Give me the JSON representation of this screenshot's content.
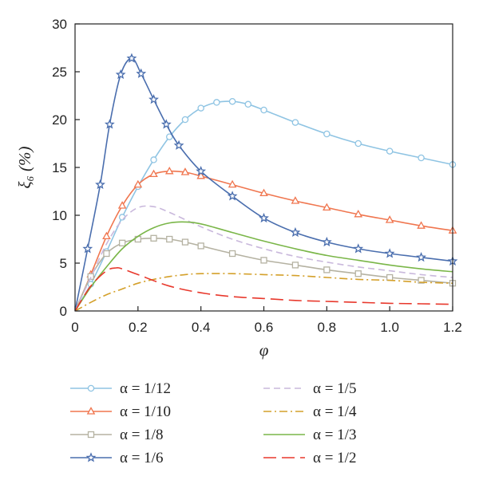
{
  "chart_data": {
    "type": "line",
    "xlabel": "φ",
    "ylabel": "ξ₆ (%)",
    "xlim": [
      0,
      1.2
    ],
    "ylim": [
      0,
      30
    ],
    "xticks": [
      "0",
      "0.2",
      "0.4",
      "0.6",
      "0.8",
      "1.0",
      "1.2"
    ],
    "yticks": [
      "0",
      "5",
      "10",
      "15",
      "20",
      "25",
      "30"
    ],
    "grid": false,
    "legend_position": "bottom",
    "series": [
      {
        "name": "α = 1/12",
        "color": "#8fc4e3",
        "dash": "solid",
        "marker": "circle",
        "x": [
          0,
          0.05,
          0.1,
          0.15,
          0.2,
          0.25,
          0.3,
          0.35,
          0.4,
          0.45,
          0.5,
          0.55,
          0.6,
          0.7,
          0.8,
          0.9,
          1.0,
          1.1,
          1.2
        ],
        "y": [
          0,
          2.8,
          6.2,
          9.8,
          13.0,
          15.8,
          18.2,
          20.0,
          21.2,
          21.8,
          21.9,
          21.6,
          21.0,
          19.7,
          18.5,
          17.5,
          16.7,
          16.0,
          15.3
        ]
      },
      {
        "name": "α = 1/10",
        "color": "#f0764f",
        "dash": "solid",
        "marker": "triangle",
        "x": [
          0,
          0.05,
          0.1,
          0.15,
          0.2,
          0.25,
          0.3,
          0.35,
          0.4,
          0.5,
          0.6,
          0.7,
          0.8,
          0.9,
          1.0,
          1.1,
          1.2
        ],
        "y": [
          0,
          3.8,
          7.8,
          11.0,
          13.2,
          14.3,
          14.6,
          14.5,
          14.1,
          13.2,
          12.3,
          11.5,
          10.8,
          10.1,
          9.5,
          8.9,
          8.4
        ]
      },
      {
        "name": "α = 1/8",
        "color": "#b5b2a2",
        "dash": "solid",
        "marker": "square",
        "x": [
          0,
          0.05,
          0.1,
          0.15,
          0.2,
          0.25,
          0.3,
          0.35,
          0.4,
          0.5,
          0.6,
          0.7,
          0.8,
          0.9,
          1.0,
          1.1,
          1.2
        ],
        "y": [
          0,
          3.6,
          6.0,
          7.1,
          7.5,
          7.6,
          7.5,
          7.2,
          6.8,
          6.0,
          5.3,
          4.8,
          4.3,
          3.9,
          3.5,
          3.2,
          2.9
        ]
      },
      {
        "name": "α = 1/6",
        "color": "#4a6eae",
        "dash": "solid",
        "marker": "star",
        "x": [
          0,
          0.04,
          0.08,
          0.11,
          0.145,
          0.18,
          0.21,
          0.25,
          0.29,
          0.33,
          0.4,
          0.5,
          0.6,
          0.7,
          0.8,
          0.9,
          1.0,
          1.1,
          1.2
        ],
        "y": [
          0,
          6.5,
          13.2,
          19.5,
          24.7,
          26.4,
          24.8,
          22.1,
          19.5,
          17.3,
          14.6,
          12.0,
          9.7,
          8.2,
          7.2,
          6.5,
          6.0,
          5.6,
          5.2
        ]
      },
      {
        "name": "α = 1/5",
        "color": "#c9b8dc",
        "dash": "8,5",
        "marker": "none",
        "x": [
          0,
          0.05,
          0.1,
          0.15,
          0.2,
          0.25,
          0.3,
          0.4,
          0.5,
          0.6,
          0.7,
          0.8,
          0.9,
          1.0,
          1.1,
          1.2
        ],
        "y": [
          0,
          3.5,
          7.0,
          9.5,
          10.8,
          10.9,
          10.3,
          8.8,
          7.5,
          6.5,
          5.7,
          5.1,
          4.6,
          4.2,
          3.8,
          3.5
        ]
      },
      {
        "name": "α = 1/4",
        "color": "#d4a02a",
        "dash": "10,4,2,4",
        "marker": "none",
        "x": [
          0,
          0.05,
          0.1,
          0.15,
          0.2,
          0.25,
          0.3,
          0.35,
          0.4,
          0.5,
          0.6,
          0.7,
          0.8,
          0.9,
          1.0,
          1.1,
          1.2
        ],
        "y": [
          0,
          0.9,
          1.7,
          2.3,
          2.9,
          3.3,
          3.6,
          3.8,
          3.9,
          3.9,
          3.8,
          3.7,
          3.5,
          3.3,
          3.2,
          3.0,
          2.9
        ]
      },
      {
        "name": "α = 1/3",
        "color": "#7ab648",
        "dash": "solid",
        "marker": "none",
        "x": [
          0,
          0.05,
          0.1,
          0.15,
          0.2,
          0.25,
          0.3,
          0.35,
          0.4,
          0.5,
          0.6,
          0.7,
          0.8,
          0.9,
          1.0,
          1.1,
          1.2
        ],
        "y": [
          0,
          2.5,
          4.6,
          6.5,
          7.8,
          8.7,
          9.2,
          9.3,
          9.1,
          8.2,
          7.3,
          6.5,
          5.8,
          5.3,
          4.8,
          4.4,
          4.1
        ]
      },
      {
        "name": "α = 1/2",
        "color": "#e8382c",
        "dash": "16,7",
        "marker": "none",
        "x": [
          0,
          0.05,
          0.1,
          0.13,
          0.15,
          0.2,
          0.3,
          0.4,
          0.5,
          0.6,
          0.7,
          0.8,
          0.9,
          1.0,
          1.1,
          1.2
        ],
        "y": [
          0,
          2.6,
          4.2,
          4.5,
          4.4,
          3.8,
          2.6,
          1.9,
          1.5,
          1.3,
          1.1,
          1.0,
          0.9,
          0.8,
          0.75,
          0.7
        ]
      }
    ]
  }
}
